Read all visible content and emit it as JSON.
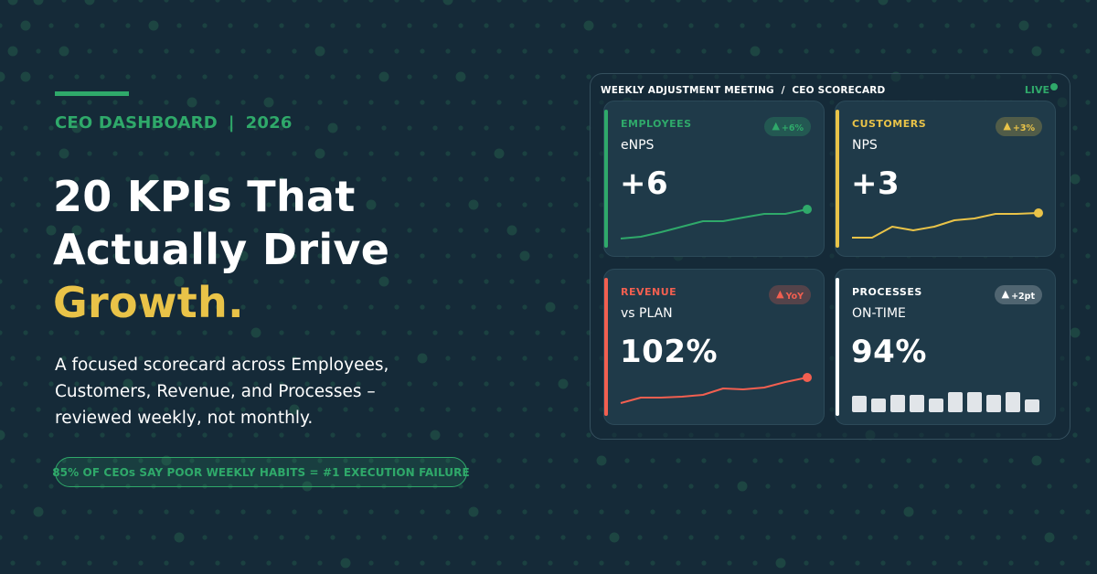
{
  "colors": {
    "background": "#152a38",
    "dot": "#1e4a44",
    "green": "#2fa96a",
    "yellow": "#e9c348",
    "red": "#f25f50",
    "white": "#ffffff",
    "card": "#1f3a49"
  },
  "hero": {
    "eyebrow_left": "CEO DASHBOARD",
    "eyebrow_sep": "|",
    "eyebrow_right": "2026",
    "headline_line1": "20 KPIs That",
    "headline_line2": "Actually Drive",
    "headline_highlight": "Growth.",
    "subtext": "A focused scorecard across Employees, Customers, Revenue, and Processes – reviewed weekly, not monthly.",
    "stat_pill": "85% OF CEOs SAY POOR WEEKLY HABITS = #1 EXECUTION FAILURE"
  },
  "panel": {
    "title": "WEEKLY ADJUSTMENT MEETING  /  CEO SCORECARD",
    "status": "LIVE",
    "cards": [
      {
        "category": "EMPLOYEES",
        "metric": "eNPS",
        "value": "+6",
        "badge_icon": "triangle-up",
        "badge_text": "+6%",
        "accent": "#2fa96a",
        "badge_bg": "rgba(47,169,106,0.28)",
        "chart_type": "line",
        "series": [
          260,
          258,
          253,
          247,
          241,
          241,
          237,
          233,
          233,
          228
        ]
      },
      {
        "category": "CUSTOMERS",
        "metric": "NPS",
        "value": "+3",
        "badge_icon": "triangle-up",
        "badge_text": "+3%",
        "accent": "#e9c348",
        "badge_bg": "rgba(233,195,72,0.25)",
        "chart_type": "line",
        "series": [
          259,
          259,
          247,
          251,
          247,
          240,
          238,
          233,
          233,
          232
        ]
      },
      {
        "category": "REVENUE",
        "metric": "vs PLAN",
        "value": "102%",
        "badge_icon": "triangle-up",
        "badge_text": "YoY",
        "accent": "#f25f50",
        "badge_bg": "rgba(242,95,80,0.25)",
        "chart_type": "line",
        "series": [
          440,
          434,
          434,
          433,
          431,
          424,
          425,
          423,
          417,
          412
        ]
      },
      {
        "category": "PROCESSES",
        "metric": "ON-TIME",
        "value": "94%",
        "badge_icon": "triangle-up",
        "badge_text": "+2pt",
        "accent": "#ffffff",
        "badge_bg": "rgba(255,255,255,0.22)",
        "chart_type": "bar",
        "series": [
          18,
          15,
          19,
          19,
          15,
          22,
          22,
          19,
          22,
          14
        ]
      }
    ]
  }
}
